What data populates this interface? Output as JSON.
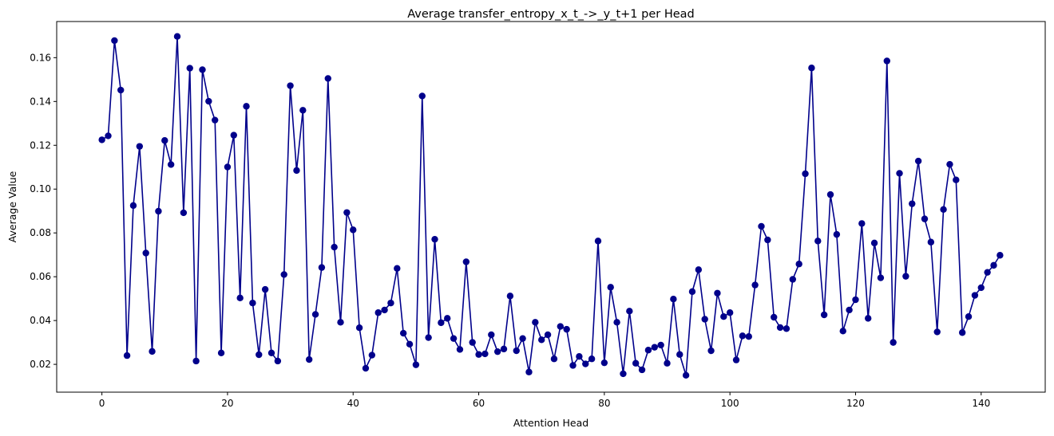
{
  "chart_data": {
    "type": "line",
    "title": "Average transfer_entropy_x_t_->_y_t+1 per Head",
    "xlabel": "Attention Head",
    "ylabel": "Average Value",
    "xlim": [
      -7.2,
      150.2
    ],
    "ylim": [
      0.0073,
      0.1765
    ],
    "xticks": [
      0,
      20,
      40,
      60,
      80,
      100,
      120,
      140
    ],
    "xtick_labels": [
      "0",
      "20",
      "40",
      "60",
      "80",
      "100",
      "120",
      "140"
    ],
    "yticks": [
      0.02,
      0.04,
      0.06,
      0.08,
      0.1,
      0.12,
      0.14,
      0.16
    ],
    "ytick_labels": [
      "0.02",
      "0.04",
      "0.06",
      "0.08",
      "0.10",
      "0.12",
      "0.14",
      "0.16"
    ],
    "grid": false,
    "marker": "circle",
    "color": "#00008b",
    "x": [
      0,
      1,
      2,
      3,
      4,
      5,
      6,
      7,
      8,
      9,
      10,
      11,
      12,
      13,
      14,
      15,
      16,
      17,
      18,
      19,
      20,
      21,
      22,
      23,
      24,
      25,
      26,
      27,
      28,
      29,
      30,
      31,
      32,
      33,
      34,
      35,
      36,
      37,
      38,
      39,
      40,
      41,
      42,
      43,
      44,
      45,
      46,
      47,
      48,
      49,
      50,
      51,
      52,
      53,
      54,
      55,
      56,
      57,
      58,
      59,
      60,
      61,
      62,
      63,
      64,
      65,
      66,
      67,
      68,
      69,
      70,
      71,
      72,
      73,
      74,
      75,
      76,
      77,
      78,
      79,
      80,
      81,
      82,
      83,
      84,
      85,
      86,
      87,
      88,
      89,
      90,
      91,
      92,
      93,
      94,
      95,
      96,
      97,
      98,
      99,
      100,
      101,
      102,
      103,
      104,
      105,
      106,
      107,
      108,
      109,
      110,
      111,
      112,
      113,
      114,
      115,
      116,
      117,
      118,
      119,
      120,
      121,
      122,
      123,
      124,
      125,
      126,
      127,
      128,
      129,
      130,
      131,
      132,
      133,
      134,
      135,
      136,
      137,
      138,
      139,
      140,
      141,
      142,
      143
    ],
    "values": [
      0.1225,
      0.1243,
      0.1678,
      0.1452,
      0.024,
      0.0925,
      0.1195,
      0.0708,
      0.0259,
      0.0899,
      0.1222,
      0.1112,
      0.1697,
      0.0892,
      0.1552,
      0.0215,
      0.1545,
      0.1401,
      0.1315,
      0.0252,
      0.1101,
      0.1246,
      0.0503,
      0.1378,
      0.048,
      0.0244,
      0.0542,
      0.0252,
      0.0215,
      0.061,
      0.1472,
      0.1085,
      0.136,
      0.0222,
      0.0428,
      0.0642,
      0.1505,
      0.0735,
      0.0392,
      0.0893,
      0.0814,
      0.0367,
      0.0182,
      0.0242,
      0.0436,
      0.0448,
      0.048,
      0.0638,
      0.0342,
      0.0292,
      0.0198,
      0.1425,
      0.0322,
      0.0771,
      0.039,
      0.041,
      0.0318,
      0.0268,
      0.0668,
      0.03,
      0.0245,
      0.0248,
      0.0335,
      0.0258,
      0.027,
      0.0512,
      0.0262,
      0.0318,
      0.0165,
      0.0392,
      0.0312,
      0.0335,
      0.0225,
      0.0373,
      0.036,
      0.0195,
      0.0236,
      0.0202,
      0.0225,
      0.0763,
      0.0207,
      0.0552,
      0.0392,
      0.0157,
      0.0443,
      0.0205,
      0.0175,
      0.0265,
      0.0278,
      0.0288,
      0.0205,
      0.0498,
      0.0245,
      0.015,
      0.0532,
      0.0632,
      0.0406,
      0.0262,
      0.0525,
      0.0418,
      0.0436,
      0.022,
      0.033,
      0.0327,
      0.0562,
      0.083,
      0.0768,
      0.0415,
      0.0368,
      0.0363,
      0.0588,
      0.0658,
      0.107,
      0.1553,
      0.0763,
      0.0426,
      0.0975,
      0.0793,
      0.0352,
      0.0448,
      0.0495,
      0.0843,
      0.041,
      0.0754,
      0.0595,
      0.1585,
      0.03,
      0.1072,
      0.0602,
      0.0933,
      0.1128,
      0.0864,
      0.0758,
      0.0348,
      0.0907,
      0.1113,
      0.1042,
      0.0345,
      0.0418,
      0.0515,
      0.055,
      0.062,
      0.0652,
      0.0698
    ]
  }
}
